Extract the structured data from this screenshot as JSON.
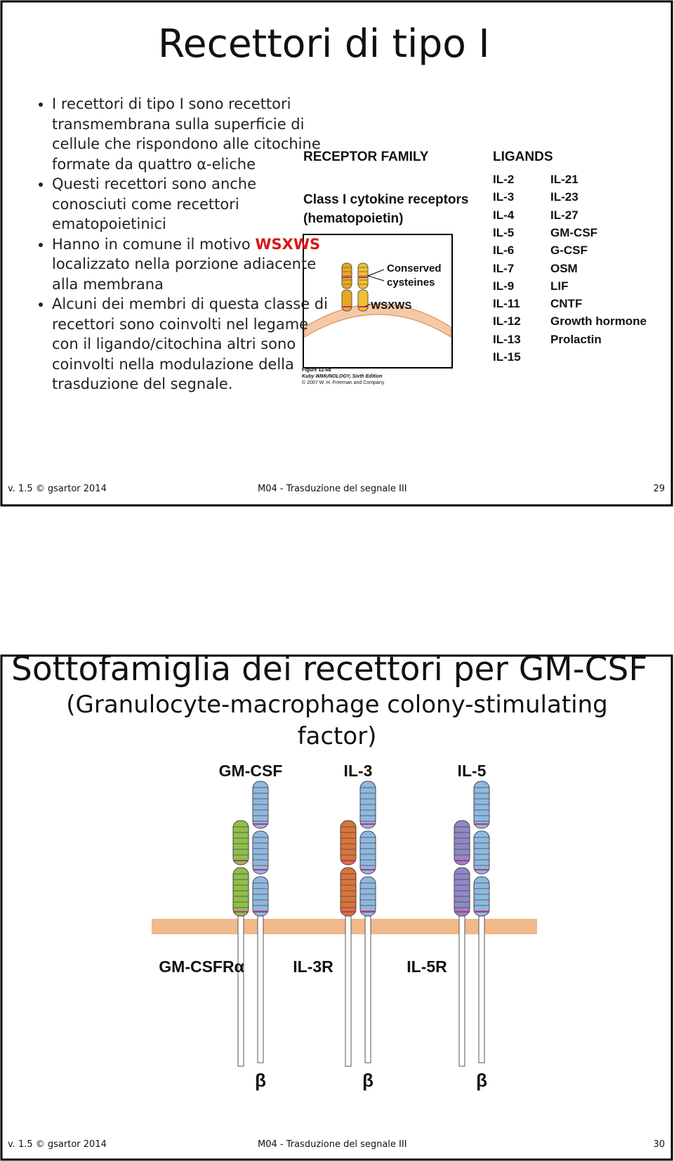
{
  "slides": [
    {
      "title": "Recettori di tipo I",
      "bullets": [
        [
          "I recettori di tipo I sono recettori transmembrana sulla superficie di cellule che rispondono alle citochine formate da quattro α-eliche"
        ],
        [
          "Questi recettori sono anche conosciuti come recettori ematopoietinici"
        ],
        [
          "Hanno in comune il motivo",
          "WSXWS",
          "localizzato nella porzione adiacente alla membrana"
        ],
        [
          "Alcuni dei membri di questa classe di recettori sono coinvolti nel legame con il ligando/citochina altri sono coinvolti nella modulazione della trasduzione del segnale."
        ]
      ],
      "figure": {
        "family_header": "RECEPTOR FAMILY",
        "family": "Class I cytokine receptors",
        "family_note": "(hematopoietin)",
        "conserved": "Conserved",
        "cysteines": "cysteines",
        "motif": "WSXWS",
        "caption": [
          "Figure 12-6b",
          "Kuby IMMUNOLOGY, Sixth Edition",
          "© 2007 W. H. Freeman and Company"
        ],
        "ligands_header": "LIGANDS",
        "ligands_col1": [
          "IL-2",
          "IL-3",
          "IL-4",
          "IL-5",
          "IL-6",
          "IL-7",
          "IL-9",
          "IL-11",
          "IL-12",
          "IL-13",
          "IL-15"
        ],
        "ligands_col2": [
          "IL-21",
          "IL-23",
          "IL-27",
          "GM-CSF",
          "G-CSF",
          "OSM",
          "LIF",
          "CNTF",
          "Growth hormone",
          "Prolactin"
        ]
      },
      "footer": {
        "left": "v. 1.5 © gsartor 2014",
        "center": "M04 - Trasduzione del segnale III",
        "page": "29"
      }
    },
    {
      "title": "Sottofamiglia dei recettori per GM-CSF",
      "subtitle": "(Granulocyte-macrophage colony-stimulating factor)",
      "figure": {
        "ligands": [
          "GM-CSF",
          "IL-3",
          "IL-5"
        ],
        "receptors": [
          "GM-CSFRα",
          "IL-3R",
          "IL-5R"
        ],
        "beta": [
          "β",
          "β",
          "β"
        ]
      },
      "footer": {
        "left": "v. 1.5 © gsartor 2014",
        "center": "M04 - Trasduzione del segnale III",
        "page": "30"
      }
    }
  ]
}
